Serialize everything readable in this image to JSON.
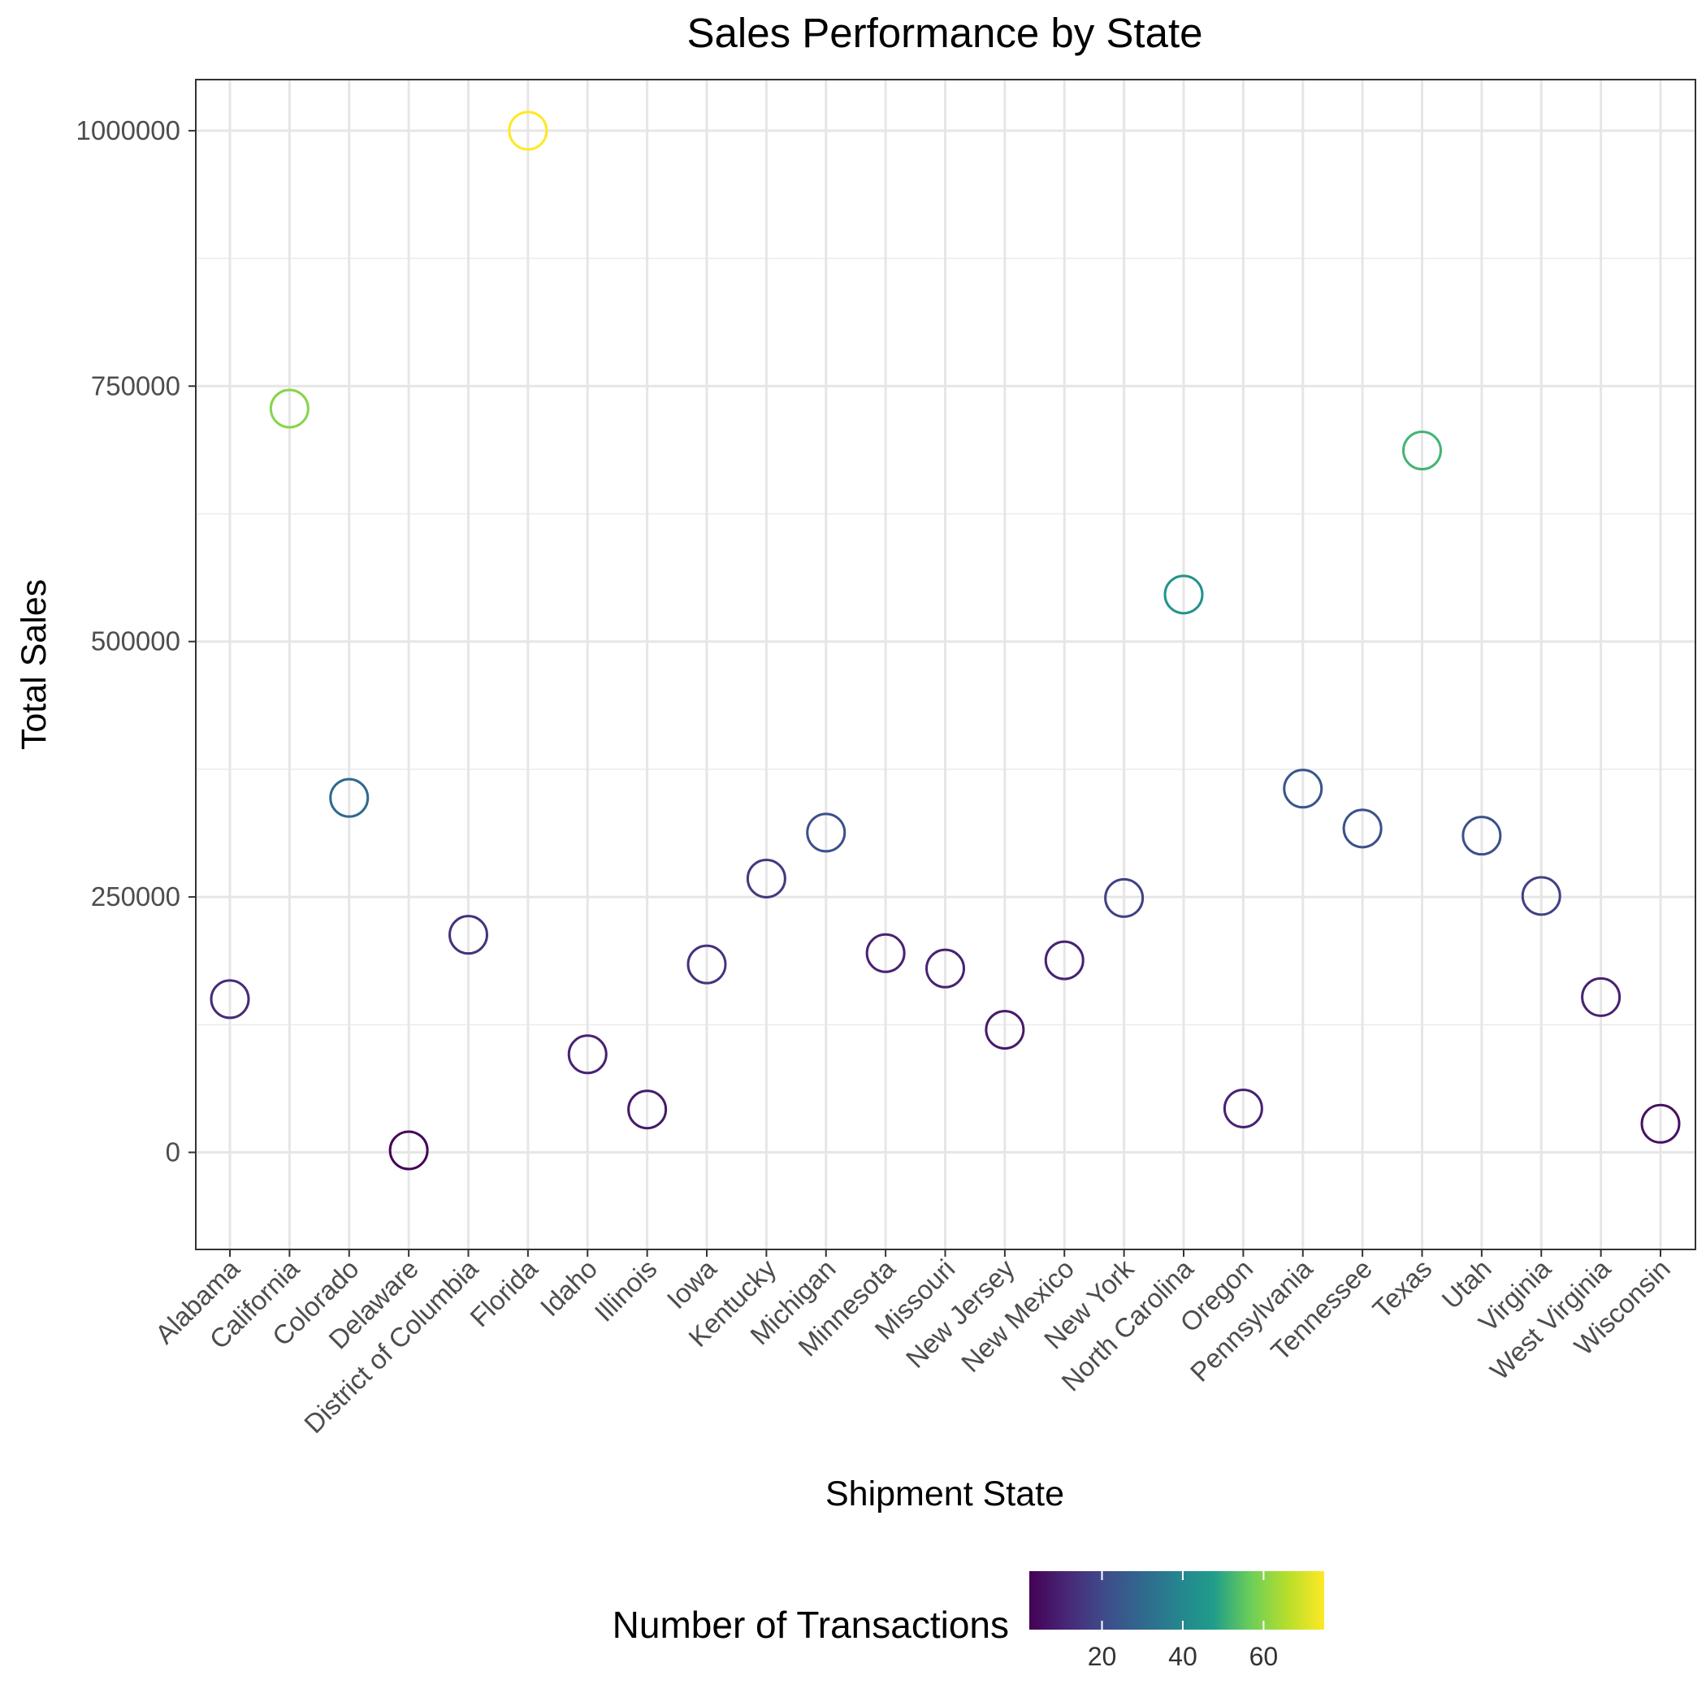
{
  "chart_data": {
    "type": "scatter",
    "title": "Sales Performance by State",
    "xlabel": "Shipment State",
    "ylabel": "Total Sales",
    "ylim": [
      -95000,
      1050000
    ],
    "yticks": [
      0,
      250000,
      500000,
      750000,
      1000000
    ],
    "ytick_labels": [
      "0",
      "250000",
      "500000",
      "750000",
      "1000000"
    ],
    "grid": true,
    "marker": "hollow-circle",
    "categories": [
      "Alabama",
      "California",
      "Colorado",
      "Delaware",
      "District of Columbia",
      "Florida",
      "Idaho",
      "Illinois",
      "Iowa",
      "Kentucky",
      "Michigan",
      "Minnesota",
      "Missouri",
      "New Jersey",
      "New Mexico",
      "New York",
      "North Carolina",
      "Oregon",
      "Pennsylvania",
      "Tennessee",
      "Texas",
      "Utah",
      "Virginia",
      "West Virginia",
      "Wisconsin"
    ],
    "values": [
      150000,
      728000,
      347000,
      2000,
      213000,
      1000000,
      96000,
      42000,
      184000,
      268000,
      313000,
      195000,
      180000,
      120000,
      188000,
      249000,
      546000,
      43000,
      356000,
      317000,
      687000,
      310000,
      251000,
      152000,
      28000
    ],
    "color_values": [
      12,
      60,
      30,
      3,
      14,
      75,
      10,
      8,
      14,
      16,
      22,
      10,
      10,
      8,
      10,
      18,
      44,
      10,
      24,
      22,
      52,
      22,
      18,
      10,
      6
    ],
    "legend": {
      "title": "Number of Transactions",
      "position": "bottom",
      "min": 2,
      "max": 75,
      "ticks": [
        20,
        40,
        60
      ],
      "tick_labels": [
        "20",
        "40",
        "60"
      ],
      "colors": [
        "#440154",
        "#482777",
        "#3f4a8a",
        "#31678e",
        "#26838f",
        "#1f9d8a",
        "#6cce5a",
        "#b6de2b",
        "#fee825"
      ]
    }
  }
}
